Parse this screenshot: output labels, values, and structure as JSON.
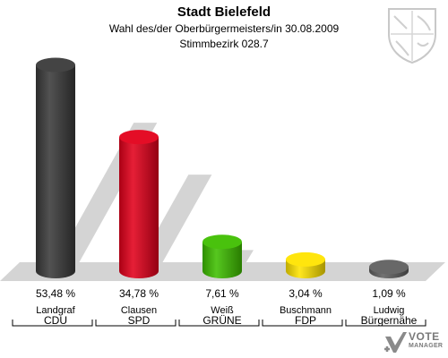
{
  "header": {
    "title": "Stadt Bielefeld",
    "subtitle": "Wahl des/der Oberbürgermeisters/in 30.08.2009",
    "district": "Stimmbezirk 028.7"
  },
  "chart_data": {
    "type": "bar",
    "title": "Stadt Bielefeld",
    "subtitle": "Wahl des/der Oberbürgermeisters/in 30.08.2009 — Stimmbezirk 028.7",
    "categories": [
      "Landgraf CDU",
      "Clausen SPD",
      "Weiß GRÜNE",
      "Buschmann FDP",
      "Ludwig Bürgernähe"
    ],
    "candidates": [
      "Landgraf",
      "Clausen",
      "Weiß",
      "Buschmann",
      "Ludwig"
    ],
    "parties": [
      "CDU",
      "SPD",
      "GRÜNE",
      "FDP",
      "Bürgernähe"
    ],
    "values": [
      53.48,
      34.78,
      7.61,
      3.04,
      1.09
    ],
    "value_labels": [
      "53,48 %",
      "34,78 %",
      "7,61 %",
      "3,04 %",
      "1,09 %"
    ],
    "colors": [
      "#3a3a3a",
      "#e3001b",
      "#3fbf00",
      "#ffe400",
      "#606060"
    ],
    "ylim": [
      0,
      55
    ],
    "grid": false,
    "legend": "none"
  },
  "footer": {
    "logo_line1": "VOTE",
    "logo_line2": "MANAGER"
  }
}
